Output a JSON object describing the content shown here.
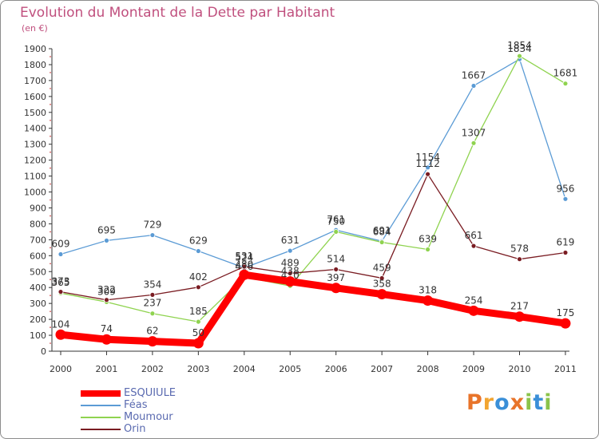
{
  "title": "Evolution du Montant de la Dette par Habitant",
  "subtitle": "(en €)",
  "logo": {
    "text": "Proxiti",
    "colors": [
      "#e8742a",
      "#f2a531",
      "#3a8fd8",
      "#e8742a",
      "#8bc34a",
      "#3a8fd8",
      "#8bc34a"
    ]
  },
  "chart_data": {
    "type": "line",
    "title": "Evolution du Montant de la Dette par Habitant",
    "subtitle": "(en €)",
    "xlabel": "",
    "ylabel": "",
    "x": [
      "2000",
      "2001",
      "2002",
      "2003",
      "2004",
      "2005",
      "2006",
      "2007",
      "2008",
      "2009",
      "2010",
      "2011"
    ],
    "ylim": [
      0,
      1900
    ],
    "yticks": [
      0,
      100,
      200,
      300,
      400,
      500,
      600,
      700,
      800,
      900,
      1000,
      1100,
      1200,
      1300,
      1400,
      1500,
      1600,
      1700,
      1800,
      1900
    ],
    "grid": false,
    "legend_position": "bottom-left",
    "series": [
      {
        "name": "ESQUIULE",
        "color": "#ff0000",
        "values": [
          104,
          74,
          62,
          50,
          480,
          438,
          397,
          358,
          318,
          254,
          217,
          175
        ]
      },
      {
        "name": "Féas",
        "color": "#5b9bd5",
        "values": [
          609,
          695,
          729,
          629,
          524,
          631,
          761,
          691,
          1154,
          1667,
          1834,
          956
        ]
      },
      {
        "name": "Moumour",
        "color": "#8fd34f",
        "values": [
          365,
          309,
          237,
          185,
          466,
          410,
          750,
          684,
          639,
          1307,
          1854,
          1681
        ]
      },
      {
        "name": "Orin",
        "color": "#7a1c22",
        "values": [
          373,
          322,
          354,
          402,
          531,
          489,
          514,
          459,
          1112,
          661,
          578,
          619
        ]
      }
    ]
  }
}
